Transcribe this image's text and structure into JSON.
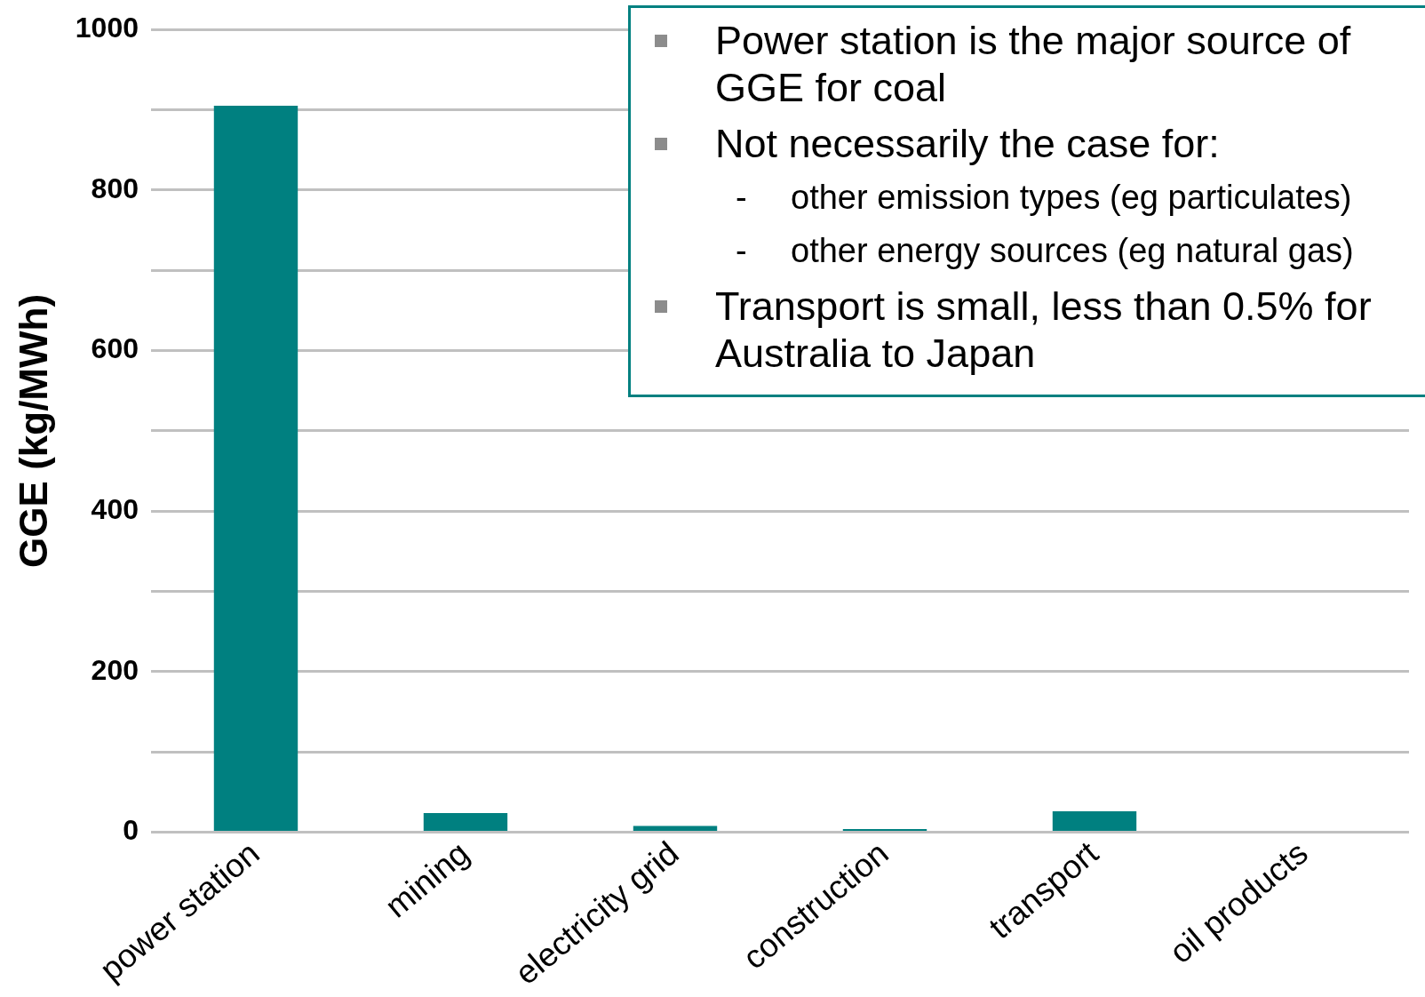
{
  "chart_data": {
    "type": "bar",
    "ylabel": "GGE (kg/MWh)",
    "categories": [
      "power station",
      "mining",
      "electricity grid",
      "construction",
      "transport",
      "oil products"
    ],
    "values": [
      905,
      24,
      8,
      4,
      26,
      0
    ],
    "color": "#008080",
    "ylim": [
      0,
      1000
    ],
    "yticks": [
      0,
      {
        "value": 100,
        "label": null
      },
      200,
      {
        "value": 300,
        "label": null
      },
      400,
      {
        "value": 500,
        "label": null
      },
      600,
      {
        "value": 700,
        "label": null
      },
      800,
      {
        "value": 900,
        "label": null
      },
      1000
    ],
    "grid": "y",
    "annotations": [
      "Power station is the major source of GGE for coal",
      "Not necessarily the case for:",
      "- other emission types (eg particulates)",
      "- other energy sources (eg natural gas)",
      "Transport is small, less than 0.5% for Australia to Japan"
    ]
  }
}
